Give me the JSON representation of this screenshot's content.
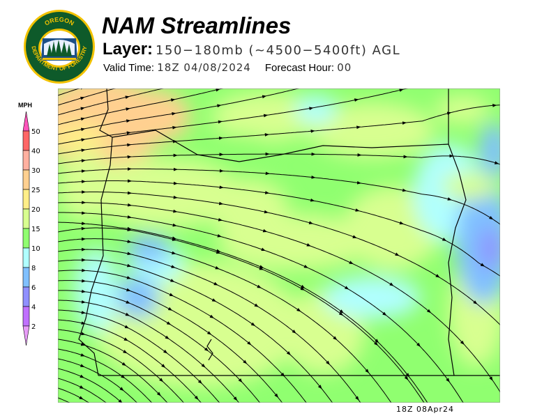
{
  "logo": {
    "top_text": "OREGON",
    "ring_text": "DEPARTMENT OF FORESTRY"
  },
  "header": {
    "title": "NAM Streamlines",
    "layer_label": "Layer:",
    "layer_value": "150−180mb (~4500−5400ft) AGL",
    "valid_label": "Valid Time:",
    "valid_value": "18Z 04/08/2024",
    "forecast_label": "Forecast Hour:",
    "forecast_value": "00"
  },
  "legend": {
    "unit": "MPH",
    "ticks": [
      "50",
      "40",
      "30",
      "25",
      "20",
      "15",
      "10",
      "8",
      "6",
      "4",
      "2"
    ],
    "colors": {
      "over_50": "#ff55bb",
      "40_50": "#ff6666",
      "30_40": "#ffb0a0",
      "25_30": "#ffd090",
      "20_25": "#ffee88",
      "15_20": "#d8ff90",
      "10_15": "#90ff70",
      "8_10": "#b0ffff",
      "6_8": "#80c0ff",
      "4_6": "#9090ff",
      "2_4": "#c070ff",
      "under_2": "#e89cf8"
    }
  },
  "footer": {
    "timestamp": "18Z 08Apr24"
  }
}
